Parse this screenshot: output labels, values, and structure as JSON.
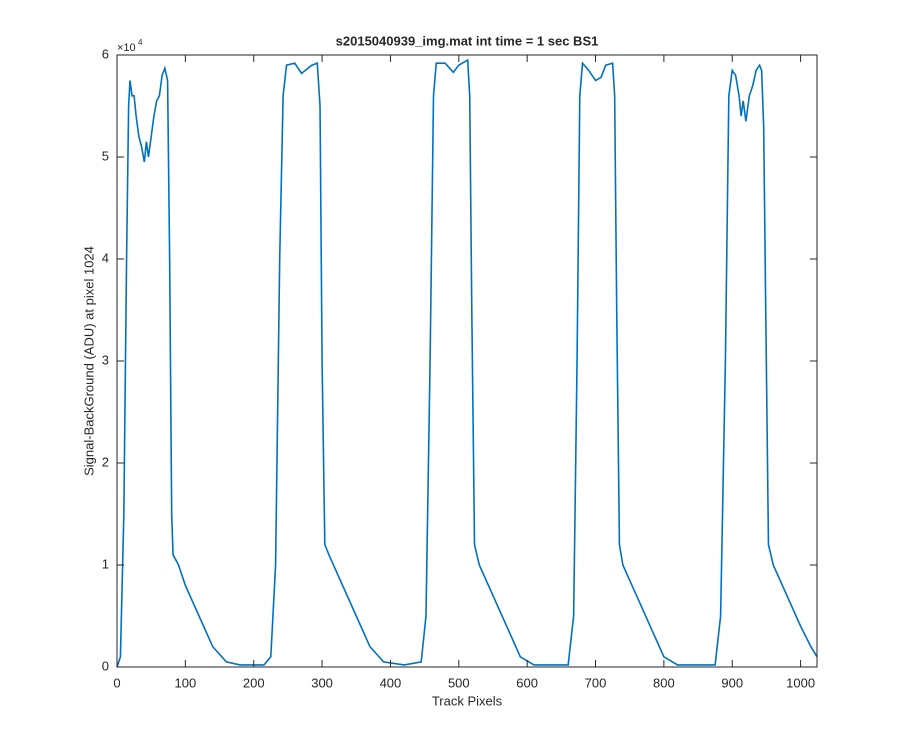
{
  "chart_data": {
    "type": "line",
    "title": "s2015040939_img.mat int time = 1 sec   BS1",
    "x_label": "Track Pixels",
    "y_label": "Signal-BackGround (ADU) at pixel 1024",
    "y_multiplier": "×10",
    "y_multiplier_exponent": "4",
    "color": "#0072bd",
    "xlim": [
      0,
      1024
    ],
    "xticks": [
      0,
      100,
      200,
      300,
      400,
      500,
      600,
      700,
      800,
      900,
      1000
    ],
    "ylim": [
      0,
      6
    ],
    "yticks": [
      0,
      1,
      2,
      3,
      4,
      5,
      6
    ],
    "x": [
      0,
      5,
      10,
      14,
      17,
      19,
      22,
      25,
      28,
      32,
      36,
      40,
      43,
      46,
      50,
      54,
      58,
      62,
      66,
      70,
      74,
      77,
      80,
      82,
      90,
      100,
      120,
      140,
      160,
      180,
      215,
      225,
      232,
      238,
      243,
      248,
      260,
      270,
      285,
      293,
      297,
      300,
      304,
      310,
      330,
      350,
      370,
      390,
      420,
      445,
      452,
      458,
      463,
      467,
      480,
      492,
      500,
      505,
      513,
      516,
      519,
      523,
      530,
      550,
      570,
      590,
      610,
      660,
      668,
      673,
      677,
      681,
      690,
      700,
      708,
      715,
      725,
      728,
      731,
      735,
      740,
      760,
      780,
      800,
      820,
      875,
      883,
      890,
      895,
      900,
      905,
      910,
      913,
      916,
      920,
      925,
      930,
      935,
      940,
      943,
      946,
      949,
      953,
      960,
      980,
      1000,
      1015,
      1024
    ],
    "values": [
      0,
      0.1,
      1.5,
      4,
      5.5,
      5.75,
      5.6,
      5.6,
      5.4,
      5.2,
      5.1,
      4.95,
      5.15,
      5.0,
      5.2,
      5.4,
      5.55,
      5.6,
      5.8,
      5.87,
      5.75,
      4,
      1.5,
      1.1,
      1.0,
      0.8,
      0.5,
      0.2,
      0.05,
      0.02,
      0.02,
      0.1,
      1,
      4,
      5.6,
      5.9,
      5.92,
      5.82,
      5.9,
      5.92,
      5.5,
      3,
      1.2,
      1.1,
      0.8,
      0.5,
      0.2,
      0.05,
      0.02,
      0.05,
      0.5,
      3,
      5.6,
      5.92,
      5.92,
      5.83,
      5.9,
      5.92,
      5.95,
      5.6,
      3.5,
      1.2,
      1.0,
      0.7,
      0.4,
      0.1,
      0.02,
      0.02,
      0.5,
      3,
      5.6,
      5.92,
      5.85,
      5.75,
      5.78,
      5.9,
      5.92,
      5.6,
      3.5,
      1.2,
      1.0,
      0.7,
      0.4,
      0.1,
      0.02,
      0.02,
      0.5,
      3,
      5.6,
      5.85,
      5.8,
      5.6,
      5.4,
      5.55,
      5.35,
      5.6,
      5.7,
      5.85,
      5.9,
      5.85,
      5.3,
      3.5,
      1.2,
      1.0,
      0.7,
      0.4,
      0.2,
      0.1
    ]
  }
}
